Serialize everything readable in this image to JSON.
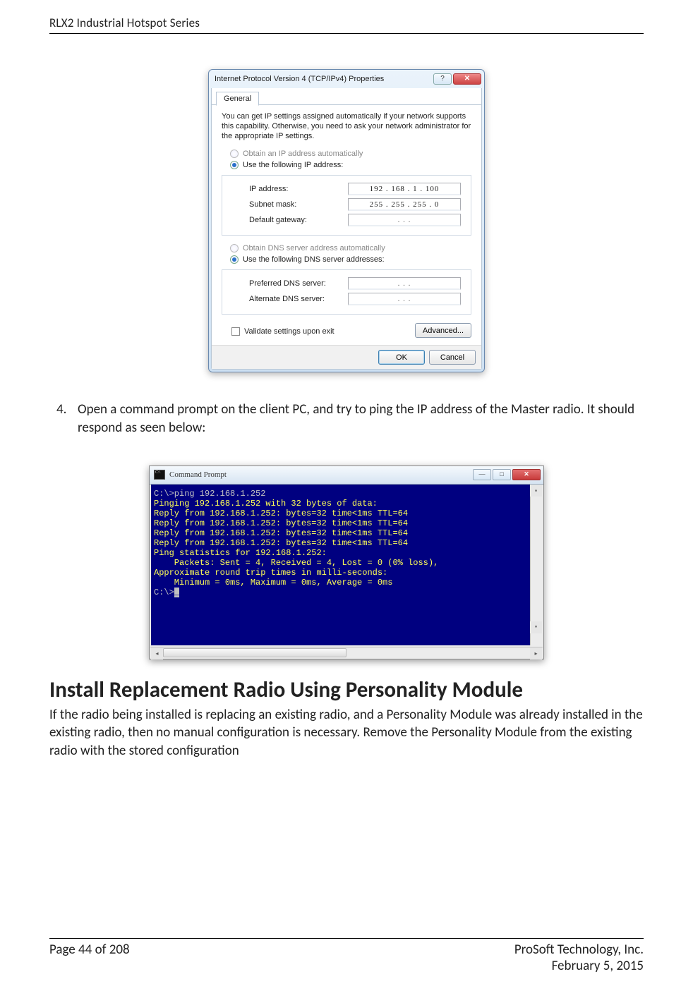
{
  "header": {
    "title": "RLX2 Industrial Hotspot Series"
  },
  "dialog": {
    "title": "Internet Protocol Version 4 (TCP/IPv4) Properties",
    "tab": "General",
    "intro": "You can get IP settings assigned automatically if your network supports this capability. Otherwise, you need to ask your network administrator for the appropriate IP settings.",
    "ip_section": {
      "radio_auto": "Obtain an IP address automatically",
      "radio_manual": "Use the following IP address:",
      "ip_label": "IP address:",
      "ip_value": "192 . 168 .   1   . 100",
      "mask_label": "Subnet mask:",
      "mask_value": "255 . 255 . 255 .   0",
      "gw_label": "Default gateway:",
      "gw_value": "  .     .     .  "
    },
    "dns_section": {
      "radio_auto": "Obtain DNS server address automatically",
      "radio_manual": "Use the following DNS server addresses:",
      "pref_label": "Preferred DNS server:",
      "pref_value": "  .     .     .  ",
      "alt_label": "Alternate DNS server:",
      "alt_value": "  .     .     .  "
    },
    "validate_label": "Validate settings upon exit",
    "advanced_label": "Advanced...",
    "ok_label": "OK",
    "cancel_label": "Cancel",
    "help_glyph": "?",
    "close_glyph": "✕"
  },
  "step4": {
    "num": "4.",
    "text": "Open a command prompt on the client PC, and try to ping the IP address of the Master radio. It should respond as seen below:"
  },
  "cmd": {
    "title": "Command Prompt",
    "min_glyph": "—",
    "max_glyph": "□",
    "close_glyph": "✕",
    "lines": [
      {
        "cls": "cmd-gray",
        "t": "C:\\>ping 192.168.1.252"
      },
      {
        "cls": "cmd-gray",
        "t": ""
      },
      {
        "cls": "cmd-yellow",
        "t": "Pinging 192.168.1.252 with 32 bytes of data:"
      },
      {
        "cls": "cmd-yellow",
        "t": "Reply from 192.168.1.252: bytes=32 time<1ms TTL=64"
      },
      {
        "cls": "cmd-yellow",
        "t": "Reply from 192.168.1.252: bytes=32 time<1ms TTL=64"
      },
      {
        "cls": "cmd-yellow",
        "t": "Reply from 192.168.1.252: bytes=32 time<1ms TTL=64"
      },
      {
        "cls": "cmd-yellow",
        "t": "Reply from 192.168.1.252: bytes=32 time<1ms TTL=64"
      },
      {
        "cls": "cmd-gray",
        "t": ""
      },
      {
        "cls": "cmd-yellow",
        "t": "Ping statistics for 192.168.1.252:"
      },
      {
        "cls": "cmd-yellow",
        "t": "    Packets: Sent = 4, Received = 4, Lost = 0 (0% loss),"
      },
      {
        "cls": "cmd-yellow",
        "t": "Approximate round trip times in milli-seconds:"
      },
      {
        "cls": "cmd-yellow",
        "t": "    Minimum = 0ms, Maximum = 0ms, Average = 0ms"
      },
      {
        "cls": "cmd-gray",
        "t": ""
      }
    ],
    "prompt_prefix": "C:\\>",
    "cursor": "_"
  },
  "section": {
    "heading": "Install Replacement Radio Using Personality Module",
    "para": "If the radio being installed is replacing an existing radio, and a Personality Module was already installed in the existing radio, then no manual configuration is necessary. Remove the Personality Module from the existing radio with the stored configuration"
  },
  "footer": {
    "left": "Page 44 of 208",
    "right1": "ProSoft Technology, Inc.",
    "right2": "February 5, 2015"
  },
  "colors": {
    "cmd_bg": "#000080",
    "cmd_gray": "#c0c0c0",
    "cmd_yellow": "#ffff55"
  }
}
